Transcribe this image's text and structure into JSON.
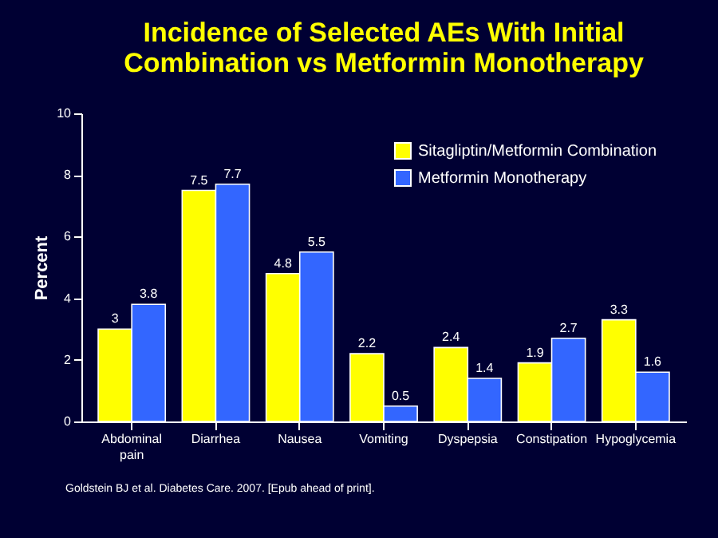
{
  "chart_data": {
    "type": "bar",
    "title": [
      "Incidence of Selected AEs With Initial",
      "Combination vs Metformin Monotherapy"
    ],
    "ylabel": "Percent",
    "categories": [
      "Abdominal pain",
      "Diarrhea",
      "Nausea",
      "Vomiting",
      "Dyspepsia",
      "Constipation",
      "Hypoglycemia"
    ],
    "series": [
      {
        "name": "Sitagliptin/Metformin Combination",
        "color": "#ffff00",
        "values": [
          3,
          7.5,
          4.8,
          2.2,
          2.4,
          1.9,
          3.3
        ]
      },
      {
        "name": "Metformin Monotherapy",
        "color": "#3366ff",
        "values": [
          3.8,
          7.7,
          5.5,
          0.5,
          1.4,
          2.7,
          1.6
        ]
      }
    ],
    "ylim": [
      0,
      10
    ],
    "yticks": [
      0,
      2,
      4,
      6,
      8,
      10
    ],
    "grid": false,
    "legend": "top right",
    "data_labels": true,
    "annotations": [
      "Goldstein BJ et al. Diabetes Care. 2007. [Epub ahead of print]."
    ]
  }
}
